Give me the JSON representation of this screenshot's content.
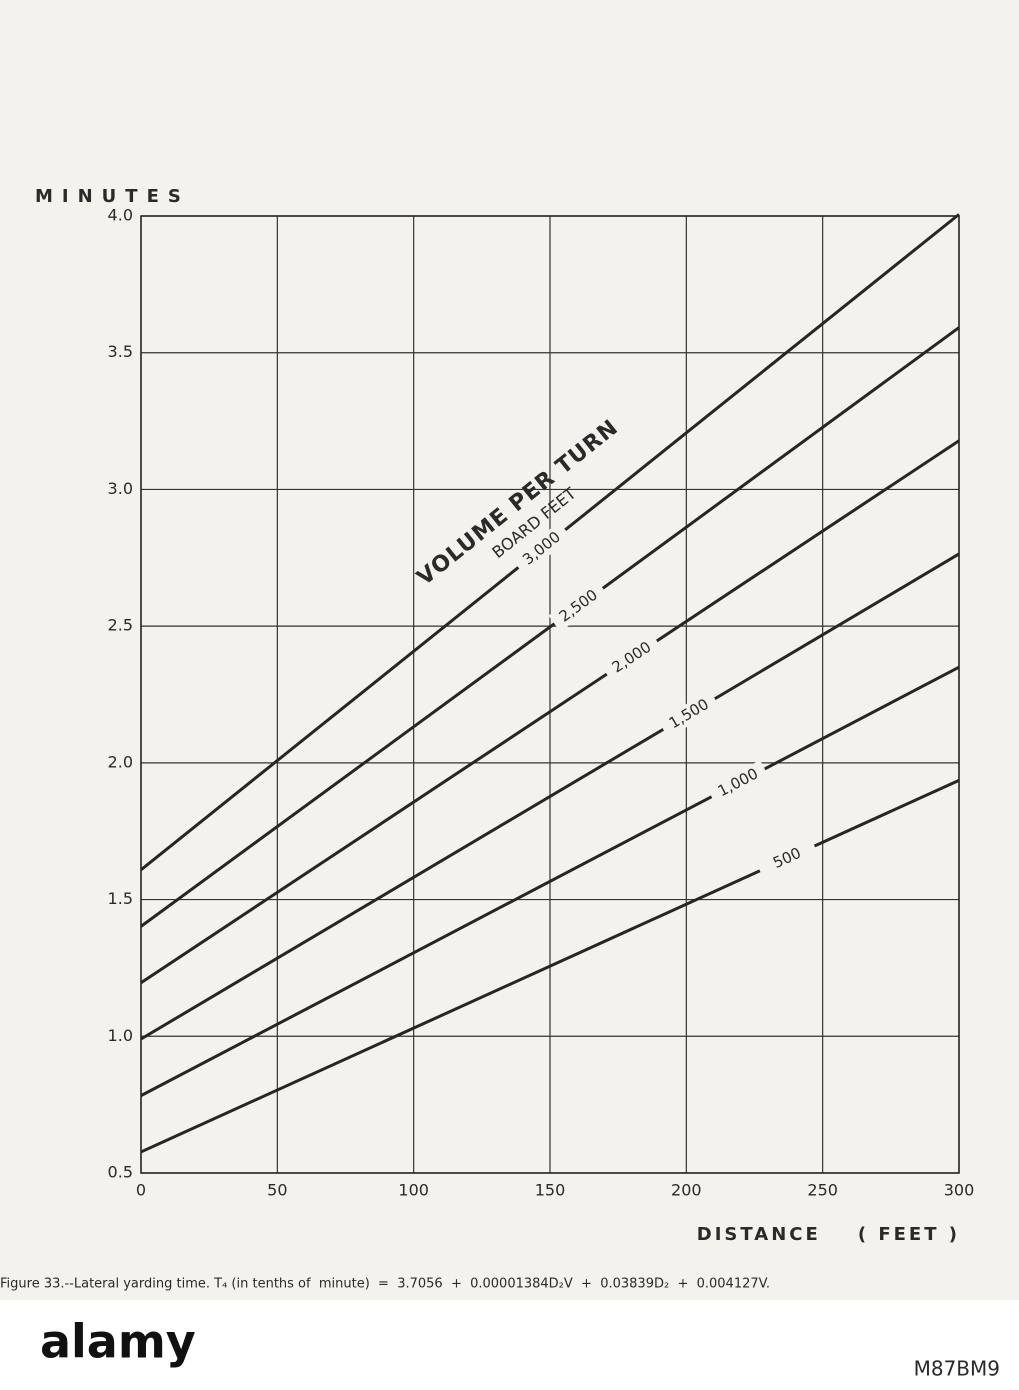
{
  "chart_data": {
    "type": "line",
    "y_label": "MINUTES",
    "x_label": "DISTANCE    ( FEET )",
    "annotations": [
      "VOLUME PER TURN",
      "BOARD FEET"
    ],
    "caption": "Figure 33.--Lateral yarding time. T₄ (in tenths of  minute)  =  3.7056  +  0.00001384D₂V  +  0.03839D₂  +  0.004127V.",
    "x": [
      0,
      300
    ],
    "series": [
      {
        "name": "500",
        "color": "#262626",
        "values": [
          0.577,
          1.936
        ]
      },
      {
        "name": "1,000",
        "color": "#262626",
        "values": [
          0.783,
          2.35
        ]
      },
      {
        "name": "1,500",
        "color": "#262626",
        "values": [
          0.99,
          2.764
        ]
      },
      {
        "name": "2,000",
        "color": "#262626",
        "values": [
          1.196,
          3.178
        ]
      },
      {
        "name": "2,500",
        "color": "#262626",
        "values": [
          1.402,
          3.592
        ]
      },
      {
        "name": "3,000",
        "color": "#262626",
        "values": [
          1.609,
          4.006
        ]
      }
    ],
    "xlim": [
      0,
      300
    ],
    "ylim": [
      0.5,
      4.0
    ],
    "xticks": [
      0,
      50,
      100,
      150,
      200,
      250,
      300
    ],
    "yticks": [
      0.5,
      {
        "value": 1,
        "label": "1.0"
      },
      1.5,
      {
        "value": 2,
        "label": "2.0"
      },
      2.5,
      {
        "value": 3,
        "label": "3.0"
      },
      3.5,
      {
        "value": 4,
        "label": "4.0"
      }
    ],
    "grid": true
  },
  "watermark": {
    "logo": "alamy",
    "id": "M87BM9"
  }
}
